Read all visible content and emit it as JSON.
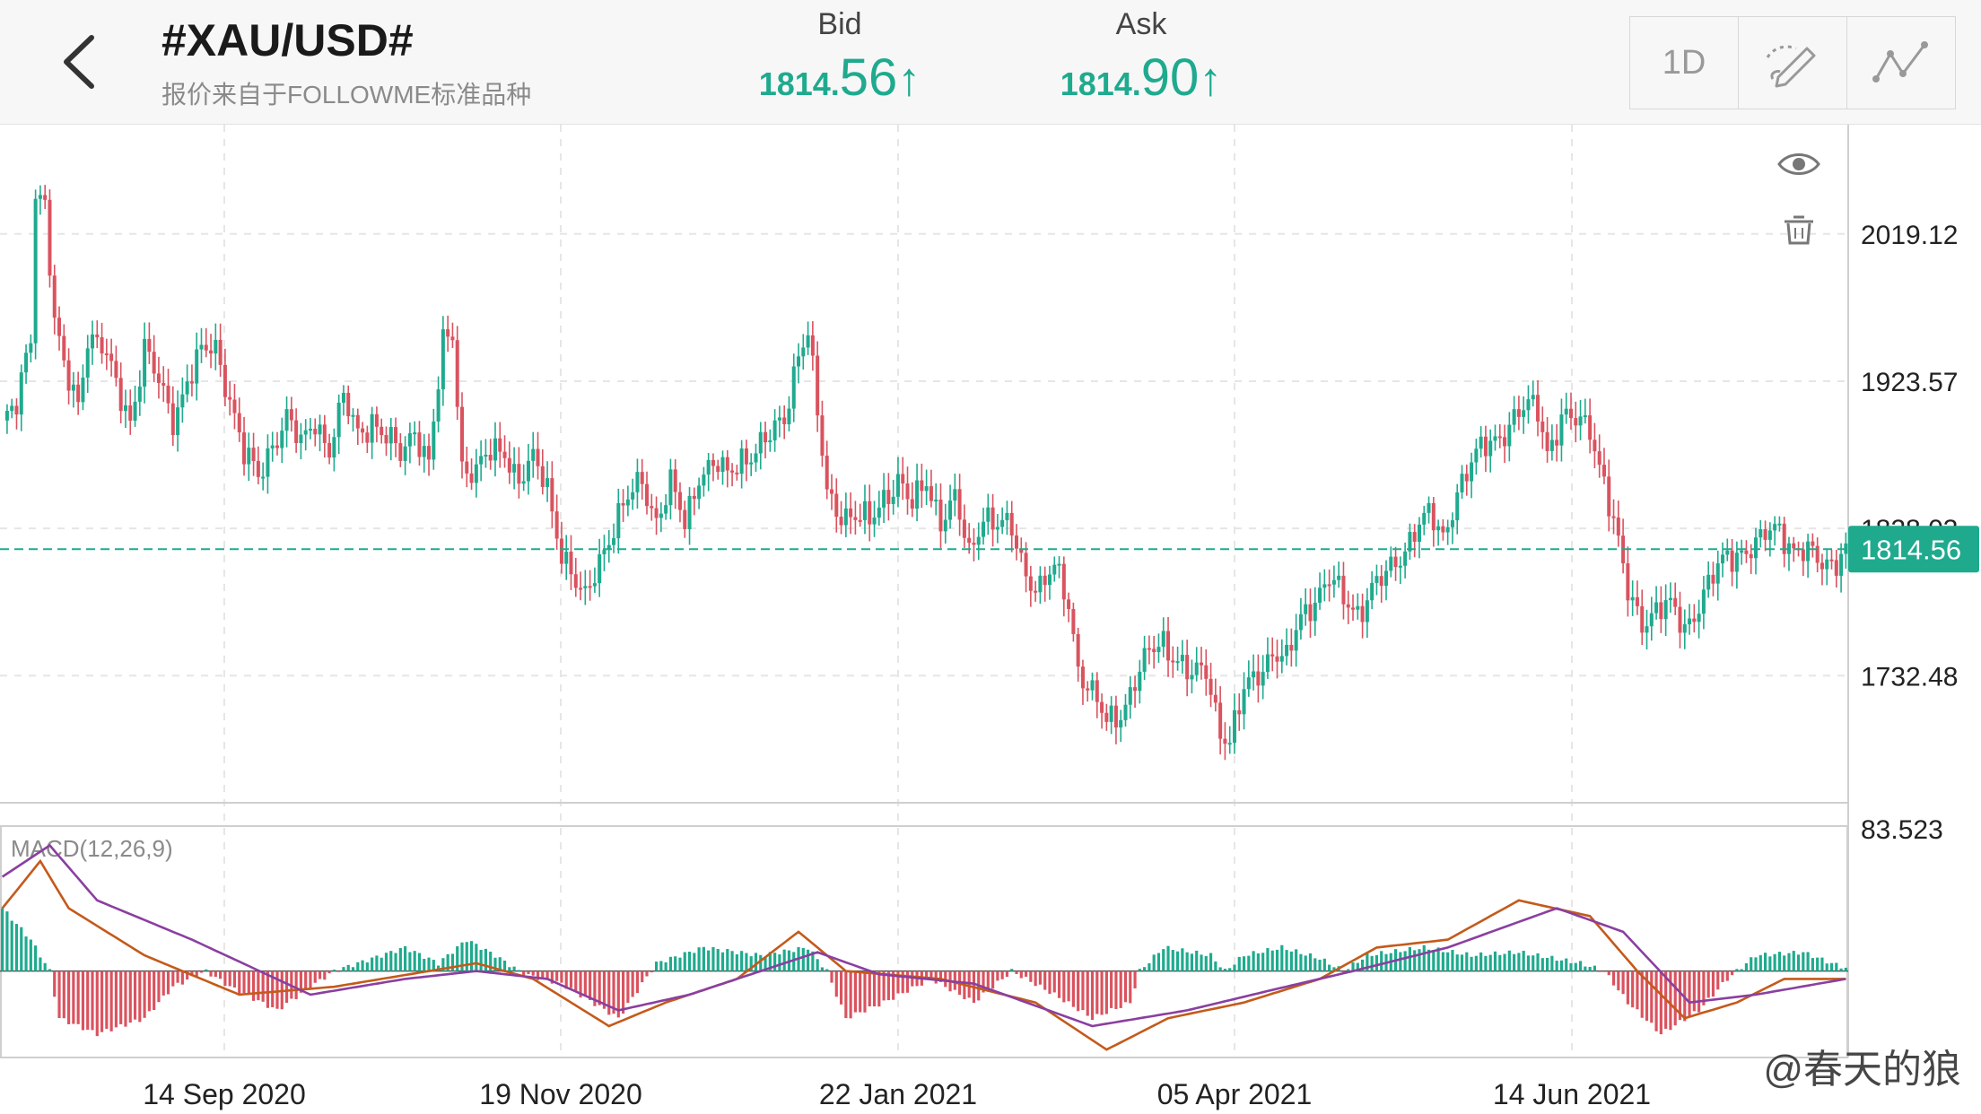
{
  "header": {
    "symbol": "#XAU/USD#",
    "subtitle": "报价来自于FOLLOWME标准品种",
    "bid": {
      "label": "Bid",
      "small": "1814.",
      "big": "56",
      "arrow": "↑"
    },
    "ask": {
      "label": "Ask",
      "small": "1814.",
      "big": "90",
      "arrow": "↑"
    }
  },
  "toolbar": {
    "timeframe": "1D",
    "draw_icon": "pen-draw-icon",
    "indicator_icon": "line-indicator-icon"
  },
  "side_icons": [
    "eye-icon",
    "trash-icon"
  ],
  "chart_data": [
    {
      "type": "candlestick",
      "title": "",
      "y_ticks": [
        "2019.12",
        "1923.57",
        "1828.03",
        "1732.48"
      ],
      "y_tick_values": [
        2019.12,
        1923.57,
        1828.03,
        1732.48
      ],
      "ylim": [
        1650,
        2090
      ],
      "x_ticks": [
        "14 Sep 2020",
        "19 Nov 2020",
        "22 Jan 2021",
        "05 Apr 2021",
        "14 Jun 2021"
      ],
      "current_price": "1814.56",
      "current_value": 1814.56,
      "colors": {
        "up": "#1faa8e",
        "down": "#d9535f"
      },
      "close_path": [
        [
          0,
          1895
        ],
        [
          3,
          1905
        ],
        [
          6,
          1955
        ],
        [
          7,
          2050
        ],
        [
          9,
          2040
        ],
        [
          11,
          1960
        ],
        [
          13,
          1930
        ],
        [
          16,
          1910
        ],
        [
          18,
          1955
        ],
        [
          21,
          1945
        ],
        [
          24,
          1920
        ],
        [
          27,
          1900
        ],
        [
          30,
          1945
        ],
        [
          33,
          1920
        ],
        [
          36,
          1900
        ],
        [
          39,
          1925
        ],
        [
          42,
          1940
        ],
        [
          45,
          1945
        ],
        [
          48,
          1915
        ],
        [
          51,
          1875
        ],
        [
          54,
          1860
        ],
        [
          57,
          1885
        ],
        [
          60,
          1900
        ],
        [
          63,
          1880
        ],
        [
          66,
          1900
        ],
        [
          69,
          1880
        ],
        [
          72,
          1910
        ],
        [
          75,
          1890
        ],
        [
          78,
          1900
        ],
        [
          81,
          1885
        ],
        [
          84,
          1875
        ],
        [
          87,
          1895
        ],
        [
          90,
          1870
        ],
        [
          93,
          1945
        ],
        [
          95,
          1955
        ],
        [
          97,
          1870
        ],
        [
          100,
          1865
        ],
        [
          103,
          1875
        ],
        [
          106,
          1880
        ],
        [
          109,
          1860
        ],
        [
          112,
          1870
        ],
        [
          115,
          1855
        ],
        [
          118,
          1815
        ],
        [
          121,
          1790
        ],
        [
          123,
          1780
        ],
        [
          126,
          1810
        ],
        [
          129,
          1830
        ],
        [
          132,
          1845
        ],
        [
          135,
          1860
        ],
        [
          138,
          1835
        ],
        [
          141,
          1855
        ],
        [
          144,
          1830
        ],
        [
          147,
          1865
        ],
        [
          150,
          1870
        ],
        [
          153,
          1860
        ],
        [
          156,
          1875
        ],
        [
          159,
          1880
        ],
        [
          162,
          1885
        ],
        [
          165,
          1900
        ],
        [
          168,
          1945
        ],
        [
          170,
          1955
        ],
        [
          172,
          1900
        ],
        [
          174,
          1850
        ],
        [
          177,
          1840
        ],
        [
          180,
          1835
        ],
        [
          183,
          1830
        ],
        [
          186,
          1850
        ],
        [
          189,
          1860
        ],
        [
          192,
          1840
        ],
        [
          195,
          1860
        ],
        [
          198,
          1835
        ],
        [
          201,
          1845
        ],
        [
          204,
          1810
        ],
        [
          207,
          1840
        ],
        [
          210,
          1830
        ],
        [
          213,
          1825
        ],
        [
          216,
          1800
        ],
        [
          219,
          1790
        ],
        [
          222,
          1800
        ],
        [
          225,
          1780
        ],
        [
          227,
          1740
        ],
        [
          230,
          1720
        ],
        [
          233,
          1700
        ],
        [
          236,
          1710
        ],
        [
          239,
          1730
        ],
        [
          242,
          1745
        ],
        [
          245,
          1755
        ],
        [
          248,
          1745
        ],
        [
          251,
          1730
        ],
        [
          254,
          1735
        ],
        [
          257,
          1700
        ],
        [
          259,
          1690
        ],
        [
          262,
          1720
        ],
        [
          265,
          1735
        ],
        [
          268,
          1750
        ],
        [
          271,
          1740
        ],
        [
          274,
          1770
        ],
        [
          277,
          1785
        ],
        [
          280,
          1795
        ],
        [
          283,
          1780
        ],
        [
          286,
          1775
        ],
        [
          289,
          1790
        ],
        [
          292,
          1795
        ],
        [
          295,
          1810
        ],
        [
          298,
          1830
        ],
        [
          301,
          1835
        ],
        [
          304,
          1820
        ],
        [
          307,
          1855
        ],
        [
          310,
          1870
        ],
        [
          313,
          1880
        ],
        [
          316,
          1890
        ],
        [
          319,
          1900
        ],
        [
          322,
          1905
        ],
        [
          324,
          1905
        ],
        [
          326,
          1880
        ],
        [
          329,
          1900
        ],
        [
          332,
          1895
        ],
        [
          335,
          1895
        ],
        [
          338,
          1860
        ],
        [
          340,
          1830
        ],
        [
          343,
          1785
        ],
        [
          346,
          1770
        ],
        [
          349,
          1775
        ],
        [
          352,
          1775
        ],
        [
          355,
          1765
        ],
        [
          358,
          1780
        ],
        [
          361,
          1795
        ],
        [
          364,
          1810
        ],
        [
          367,
          1815
        ],
        [
          370,
          1815
        ],
        [
          373,
          1825
        ],
        [
          375,
          1830
        ],
        [
          378,
          1815
        ],
        [
          381,
          1810
        ],
        [
          384,
          1805
        ],
        [
          387,
          1810
        ],
        [
          389,
          1815
        ]
      ]
    },
    {
      "type": "line+bar",
      "title": "MACD(12,26,9)",
      "y_ticks": [
        "83.523"
      ],
      "y_tick_values": [
        83.523
      ],
      "ylim": [
        -55,
        90
      ],
      "series": [
        {
          "name": "MACD",
          "color": "#c45a1a",
          "points": [
            [
              0,
              40
            ],
            [
              8,
              70
            ],
            [
              14,
              40
            ],
            [
              30,
              10
            ],
            [
              50,
              -15
            ],
            [
              70,
              -10
            ],
            [
              90,
              0
            ],
            [
              100,
              5
            ],
            [
              112,
              -5
            ],
            [
              128,
              -35
            ],
            [
              140,
              -20
            ],
            [
              155,
              -5
            ],
            [
              168,
              25
            ],
            [
              178,
              0
            ],
            [
              198,
              -5
            ],
            [
              218,
              -20
            ],
            [
              233,
              -50
            ],
            [
              246,
              -30
            ],
            [
              262,
              -20
            ],
            [
              278,
              -5
            ],
            [
              290,
              15
            ],
            [
              305,
              20
            ],
            [
              320,
              45
            ],
            [
              335,
              35
            ],
            [
              345,
              0
            ],
            [
              355,
              -30
            ],
            [
              366,
              -20
            ],
            [
              376,
              -5
            ],
            [
              389,
              -5
            ]
          ]
        },
        {
          "name": "Signal",
          "color": "#8a3fa0",
          "points": [
            [
              0,
              60
            ],
            [
              10,
              80
            ],
            [
              20,
              45
            ],
            [
              40,
              20
            ],
            [
              65,
              -15
            ],
            [
              85,
              -5
            ],
            [
              100,
              0
            ],
            [
              115,
              -5
            ],
            [
              130,
              -25
            ],
            [
              145,
              -15
            ],
            [
              160,
              0
            ],
            [
              172,
              12
            ],
            [
              185,
              -2
            ],
            [
              205,
              -8
            ],
            [
              230,
              -35
            ],
            [
              250,
              -25
            ],
            [
              268,
              -12
            ],
            [
              285,
              0
            ],
            [
              305,
              15
            ],
            [
              328,
              40
            ],
            [
              342,
              25
            ],
            [
              356,
              -20
            ],
            [
              370,
              -15
            ],
            [
              389,
              -5
            ]
          ]
        }
      ],
      "hist_path": [
        [
          0,
          40
        ],
        [
          6,
          20
        ],
        [
          10,
          0
        ],
        [
          12,
          -30
        ],
        [
          20,
          -40
        ],
        [
          30,
          -30
        ],
        [
          36,
          -10
        ],
        [
          43,
          0
        ],
        [
          48,
          -10
        ],
        [
          58,
          -25
        ],
        [
          65,
          -10
        ],
        [
          70,
          0
        ],
        [
          85,
          15
        ],
        [
          92,
          5
        ],
        [
          98,
          20
        ],
        [
          104,
          10
        ],
        [
          110,
          -2
        ],
        [
          118,
          -8
        ],
        [
          130,
          -30
        ],
        [
          138,
          5
        ],
        [
          148,
          15
        ],
        [
          160,
          10
        ],
        [
          170,
          15
        ],
        [
          174,
          0
        ],
        [
          178,
          -30
        ],
        [
          186,
          -20
        ],
        [
          196,
          -5
        ],
        [
          205,
          -20
        ],
        [
          213,
          0
        ],
        [
          222,
          -15
        ],
        [
          230,
          -30
        ],
        [
          238,
          -20
        ],
        [
          240,
          0
        ],
        [
          245,
          15
        ],
        [
          255,
          10
        ],
        [
          258,
          0
        ],
        [
          262,
          10
        ],
        [
          270,
          15
        ],
        [
          278,
          8
        ],
        [
          283,
          0
        ],
        [
          288,
          10
        ],
        [
          300,
          15
        ],
        [
          310,
          10
        ],
        [
          320,
          12
        ],
        [
          333,
          5
        ],
        [
          338,
          0
        ],
        [
          343,
          -20
        ],
        [
          350,
          -40
        ],
        [
          358,
          -25
        ],
        [
          364,
          -5
        ],
        [
          366,
          0
        ],
        [
          370,
          10
        ],
        [
          380,
          12
        ],
        [
          386,
          5
        ],
        [
          389,
          2
        ]
      ],
      "hist_colors": {
        "positive": "#1faa8e",
        "negative": "#d9535f"
      }
    }
  ],
  "watermark": "@春天的狼"
}
